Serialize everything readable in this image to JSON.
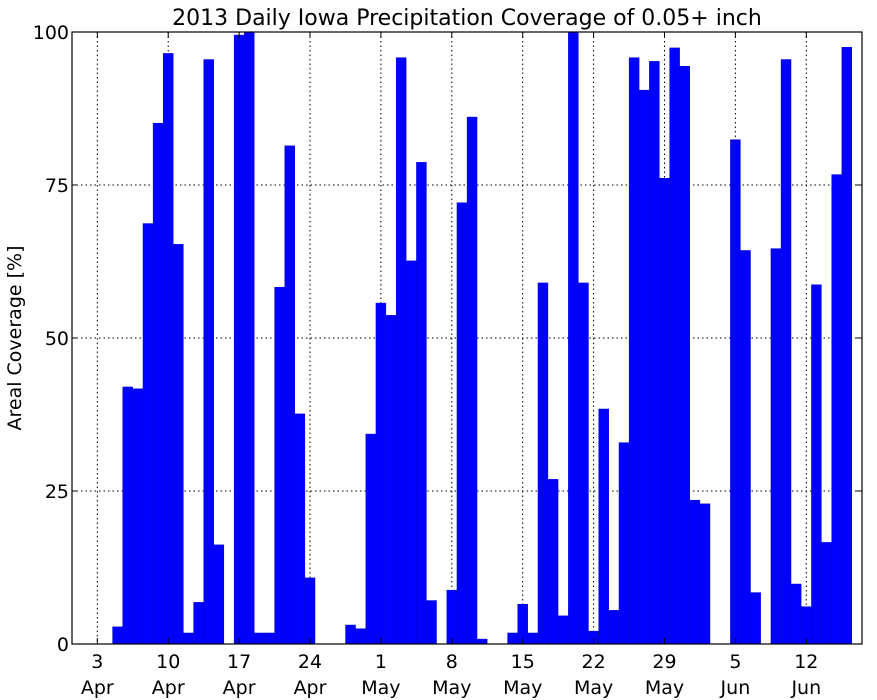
{
  "chart_data": {
    "type": "bar",
    "title": "2013 Daily Iowa Precipitation Coverage of 0.05+ inch",
    "ylabel": "Areal Coverage [%]",
    "xlabel": "",
    "ylim": [
      0,
      100
    ],
    "yticks": [
      "0",
      "25",
      "50",
      "75",
      "100"
    ],
    "xtick_days": [
      "3",
      "10",
      "17",
      "24",
      "1",
      "8",
      "15",
      "22",
      "29",
      "5",
      "12"
    ],
    "xtick_months": [
      "Apr",
      "Apr",
      "Apr",
      "Apr",
      "May",
      "May",
      "May",
      "May",
      "May",
      "Jun",
      "Jun"
    ],
    "grid": true,
    "bar_color": "#0000ff",
    "categories": [
      "2013-04-01",
      "2013-04-02",
      "2013-04-03",
      "2013-04-04",
      "2013-04-05",
      "2013-04-06",
      "2013-04-07",
      "2013-04-08",
      "2013-04-09",
      "2013-04-10",
      "2013-04-11",
      "2013-04-12",
      "2013-04-13",
      "2013-04-14",
      "2013-04-15",
      "2013-04-16",
      "2013-04-17",
      "2013-04-18",
      "2013-04-19",
      "2013-04-20",
      "2013-04-21",
      "2013-04-22",
      "2013-04-23",
      "2013-04-24",
      "2013-04-25",
      "2013-04-26",
      "2013-04-27",
      "2013-04-28",
      "2013-04-29",
      "2013-04-30",
      "2013-05-01",
      "2013-05-02",
      "2013-05-03",
      "2013-05-04",
      "2013-05-05",
      "2013-05-06",
      "2013-05-07",
      "2013-05-08",
      "2013-05-09",
      "2013-05-10",
      "2013-05-11",
      "2013-05-12",
      "2013-05-13",
      "2013-05-14",
      "2013-05-15",
      "2013-05-16",
      "2013-05-17",
      "2013-05-18",
      "2013-05-19",
      "2013-05-20",
      "2013-05-21",
      "2013-05-22",
      "2013-05-23",
      "2013-05-24",
      "2013-05-25",
      "2013-05-26",
      "2013-05-27",
      "2013-05-28",
      "2013-05-29",
      "2013-05-30",
      "2013-05-31",
      "2013-06-01",
      "2013-06-02",
      "2013-06-03",
      "2013-06-04",
      "2013-06-05",
      "2013-06-06",
      "2013-06-07",
      "2013-06-08",
      "2013-06-09",
      "2013-06-10",
      "2013-06-11",
      "2013-06-12",
      "2013-06-13",
      "2013-06-14",
      "2013-06-15",
      "2013-06-16",
      "2013-06-17"
    ],
    "values": [
      0,
      0,
      0,
      0,
      2.8,
      42,
      41.7,
      68.7,
      85.1,
      96.5,
      65.3,
      1.8,
      6.8,
      95.5,
      16.2,
      0,
      99.5,
      100,
      1.8,
      1.8,
      58.3,
      81.4,
      37.6,
      10.8,
      0,
      0,
      0,
      3.1,
      2.5,
      34.3,
      55.7,
      53.7,
      95.8,
      62.6,
      78.7,
      7.1,
      0,
      8.8,
      72.1,
      86.1,
      0.8,
      0,
      0,
      1.8,
      6.5,
      1.8,
      59,
      26.9,
      4.6,
      100,
      59,
      2.1,
      38.4,
      5.5,
      32.9,
      95.8,
      90.5,
      95.2,
      76.1,
      97.4,
      94.4,
      23.5,
      22.9,
      0,
      0,
      82.4,
      64.3,
      8.4,
      0,
      64.6,
      95.5,
      9.8,
      6.1,
      58.7,
      16.6,
      76.7,
      97.5,
      0
    ]
  }
}
